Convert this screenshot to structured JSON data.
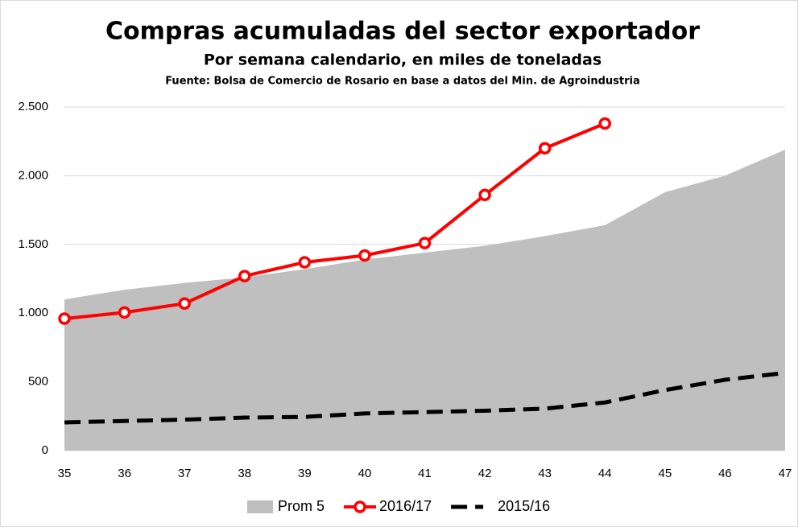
{
  "chart_data": {
    "type": "line",
    "title": "Compras acumuladas del sector exportador",
    "subtitle": "Por semana calendario, en miles de toneladas",
    "source": "Fuente: Bolsa de Comercio de Rosario en base a datos del Min. de Agroindustria",
    "x": [
      35,
      36,
      37,
      38,
      39,
      40,
      41,
      42,
      43,
      44,
      45,
      46,
      47
    ],
    "xlim": [
      35,
      47
    ],
    "xticks": [
      35,
      36,
      37,
      38,
      39,
      40,
      41,
      42,
      43,
      44,
      45,
      46,
      47
    ],
    "ylim": [
      0,
      2500
    ],
    "yticks": [
      0,
      500,
      {
        "value": 1000,
        "label": "1.000"
      },
      {
        "value": 1500,
        "label": "1.500"
      },
      {
        "value": 2000,
        "label": "2.000"
      },
      {
        "value": 2500,
        "label": "2.500"
      }
    ],
    "grid": true,
    "legend": "bottom",
    "series": [
      {
        "name": "Prom 5",
        "style": "area",
        "color": "#bfbfbf",
        "values": [
          1100,
          1170,
          1220,
          1260,
          1320,
          1390,
          1440,
          1490,
          1560,
          1640,
          1880,
          2000,
          2190
        ]
      },
      {
        "name": "2016/17",
        "style": "markers",
        "color": "#ff0000",
        "values": [
          960,
          1005,
          1070,
          1270,
          1370,
          1420,
          1510,
          1860,
          2200,
          2380,
          null,
          null,
          null
        ]
      },
      {
        "name": "2015/16",
        "style": "dashed",
        "color": "#000000",
        "values": [
          205,
          215,
          225,
          240,
          245,
          270,
          280,
          290,
          305,
          350,
          440,
          515,
          565
        ]
      }
    ]
  }
}
